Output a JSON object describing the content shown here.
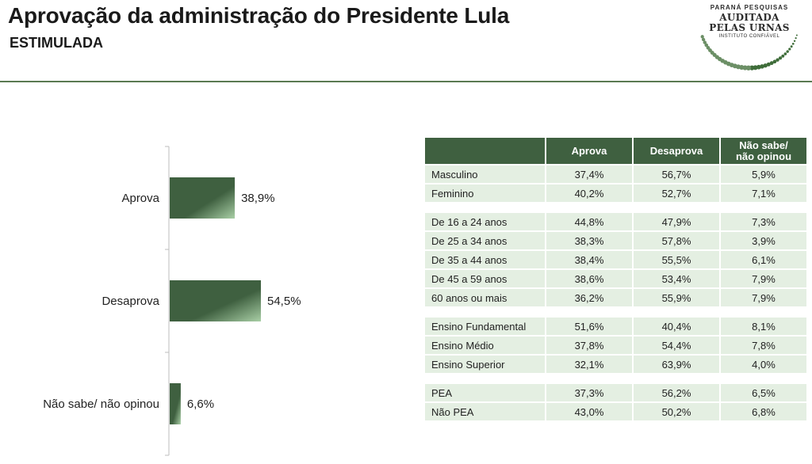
{
  "header": {
    "title": "Aprovação da administração do Presidente Lula",
    "subtitle": "ESTIMULADA"
  },
  "logo": {
    "line1": "PARANÁ PESQUISAS",
    "line2": "AUDITADA",
    "line3": "PELAS URNAS",
    "line4": "INSTITUTO CONFIÁVEL"
  },
  "colors": {
    "bar_dark": "#3f6040",
    "bar_light": "#a9cfa6",
    "table_header": "#3f6040",
    "table_cell": "#e4efe2",
    "rule": "#5a7a52"
  },
  "chart_data": {
    "type": "bar",
    "orientation": "horizontal",
    "categories": [
      "Aprova",
      "Desaprova",
      "Não sabe/ não opinou"
    ],
    "values": [
      38.9,
      54.5,
      6.6
    ],
    "value_labels": [
      "38,9%",
      "54,5%",
      "6,6%"
    ],
    "xlim": [
      0,
      100
    ],
    "title": "",
    "xlabel": "",
    "ylabel": "",
    "grid": false
  },
  "table": {
    "columns": [
      "",
      "Aprova",
      "Desaprova",
      "Não sabe/\nnão opinou"
    ],
    "groups": [
      [
        [
          "Masculino",
          "37,4%",
          "56,7%",
          "5,9%"
        ],
        [
          "Feminino",
          "40,2%",
          "52,7%",
          "7,1%"
        ]
      ],
      [
        [
          "De 16 a 24 anos",
          "44,8%",
          "47,9%",
          "7,3%"
        ],
        [
          "De 25 a 34 anos",
          "38,3%",
          "57,8%",
          "3,9%"
        ],
        [
          "De 35 a 44 anos",
          "38,4%",
          "55,5%",
          "6,1%"
        ],
        [
          "De 45 a 59 anos",
          "38,6%",
          "53,4%",
          "7,9%"
        ],
        [
          "60 anos ou mais",
          "36,2%",
          "55,9%",
          "7,9%"
        ]
      ],
      [
        [
          "Ensino Fundamental",
          "51,6%",
          "40,4%",
          "8,1%"
        ],
        [
          "Ensino Médio",
          "37,8%",
          "54,4%",
          "7,8%"
        ],
        [
          "Ensino Superior",
          "32,1%",
          "63,9%",
          "4,0%"
        ]
      ],
      [
        [
          "PEA",
          "37,3%",
          "56,2%",
          "6,5%"
        ],
        [
          "Não PEA",
          "43,0%",
          "50,2%",
          "6,8%"
        ]
      ]
    ]
  }
}
